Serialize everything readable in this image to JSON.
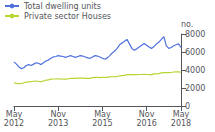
{
  "chart_data": {
    "type": "line",
    "categories": [
      "May\n2012",
      null,
      null,
      null,
      null,
      null,
      null,
      null,
      null,
      null,
      null,
      null,
      null,
      null,
      null,
      null,
      null,
      null,
      "Nov\n2013",
      null,
      null,
      null,
      null,
      null,
      null,
      null,
      null,
      null,
      null,
      null,
      null,
      null,
      null,
      null,
      null,
      null,
      "May\n2015",
      null,
      null,
      null,
      null,
      null,
      null,
      null,
      null,
      null,
      null,
      null,
      null,
      null,
      null,
      null,
      null,
      null,
      "Nov\n2016",
      null,
      null,
      null,
      null,
      null,
      null,
      null,
      null,
      null,
      null,
      null,
      null,
      null,
      "May\n2018"
    ],
    "series": [
      {
        "name": "Total dwelling units",
        "values": [
          4900,
          4650,
          4350,
          4150,
          4250,
          4500,
          4600,
          4500,
          4650,
          4800,
          4750,
          4600,
          4800,
          5000,
          5100,
          5300,
          5450,
          5500,
          5600,
          5550,
          5500,
          5400,
          5500,
          5600,
          5500,
          5400,
          5500,
          5600,
          5550,
          5450,
          5350,
          5300,
          5450,
          5600,
          5550,
          5450,
          5300,
          5200,
          5350,
          5600,
          5900,
          6100,
          6400,
          6800,
          7000,
          7200,
          7400,
          6900,
          6400,
          6200,
          6350,
          6550,
          6750,
          6950,
          6750,
          6550,
          6400,
          6600,
          6900,
          7100,
          7400,
          7700,
          6700,
          6400,
          6500,
          6700,
          6800,
          6900,
          6500
        ]
      },
      {
        "name": "Private sector Houses",
        "values": [
          2600,
          2500,
          2480,
          2500,
          2580,
          2650,
          2680,
          2700,
          2750,
          2780,
          2720,
          2700,
          2780,
          2880,
          2900,
          2980,
          3000,
          3000,
          3010,
          3000,
          2990,
          2980,
          3000,
          3080,
          3080,
          3080,
          3090,
          3100,
          3090,
          3080,
          3080,
          3070,
          3150,
          3170,
          3170,
          3160,
          3170,
          3170,
          3180,
          3230,
          3250,
          3270,
          3280,
          3350,
          3380,
          3400,
          3480,
          3490,
          3490,
          3490,
          3490,
          3500,
          3500,
          3510,
          3500,
          3490,
          3490,
          3570,
          3580,
          3590,
          3680,
          3700,
          3700,
          3700,
          3720,
          3780,
          3790,
          3800,
          3750
        ]
      }
    ],
    "ylabel": "no.",
    "ylim": [
      0,
      8000
    ],
    "yticks": [
      0,
      2000,
      4000,
      6000,
      8000
    ],
    "grid": false,
    "legend": "upper left"
  }
}
